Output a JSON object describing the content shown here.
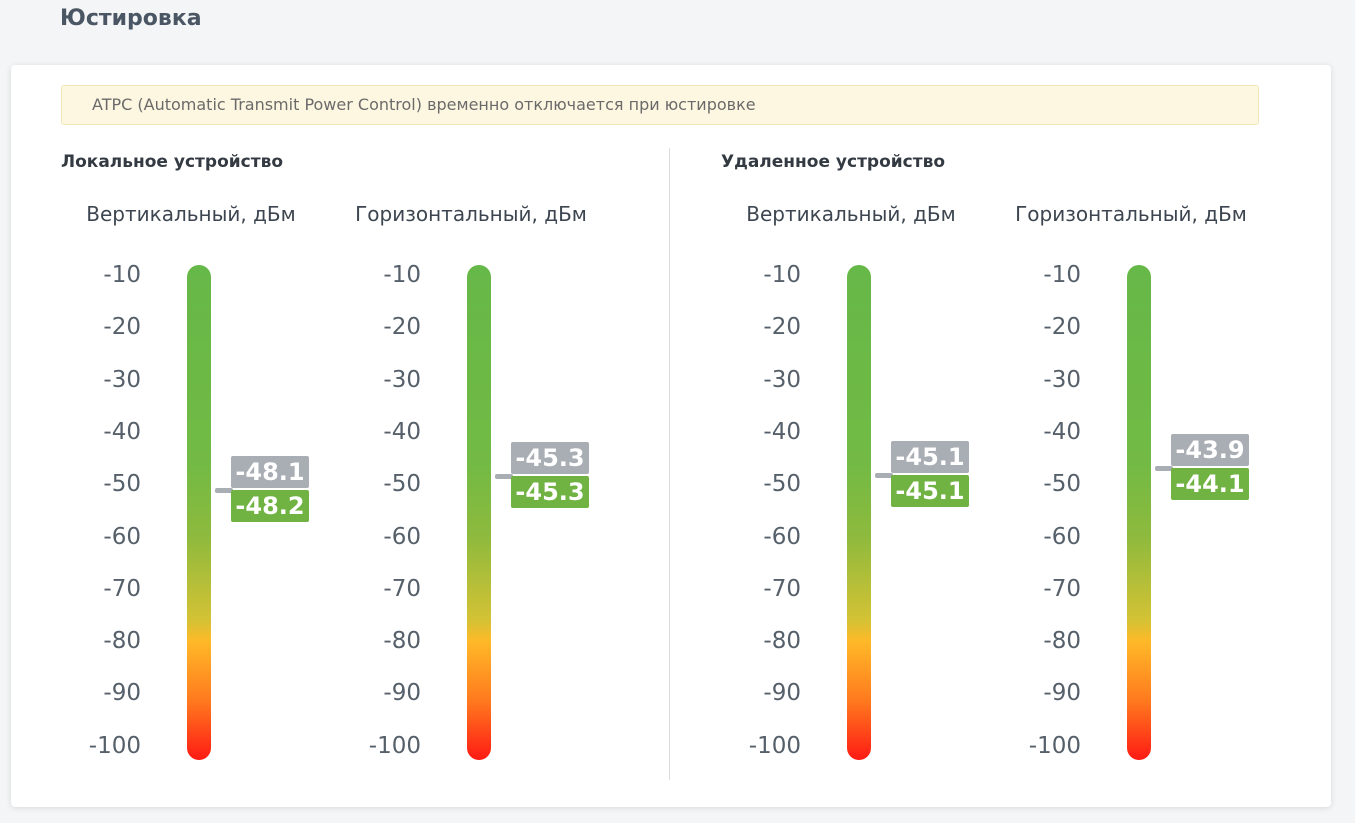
{
  "page": {
    "title": "Юстировка"
  },
  "notice": "ATPC (Automatic Transmit Power Control) временно отключается при юстировке",
  "scale": {
    "ticks": [
      "-10",
      "-20",
      "-30",
      "-40",
      "-50",
      "-60",
      "-70",
      "-80",
      "-90",
      "-100"
    ],
    "min": -100,
    "max": -10
  },
  "colors": {
    "bar_top": "#66b848",
    "bar_middle": "#ffb928",
    "bar_bottom": "#ff1a14",
    "label_grey": "#a9aeb4",
    "label_green": "#71b343"
  },
  "sections": [
    {
      "title": "Локальное устройство",
      "gauges": [
        {
          "title": "Вертикальный, дБм",
          "value1": "-48.1",
          "value2": "-48.2"
        },
        {
          "title": "Горизонтальный, дБм",
          "value1": "-45.3",
          "value2": "-45.3"
        }
      ]
    },
    {
      "title": "Удаленное устройство",
      "gauges": [
        {
          "title": "Вертикальный, дБм",
          "value1": "-45.1",
          "value2": "-45.1"
        },
        {
          "title": "Горизонтальный, дБм",
          "value1": "-43.9",
          "value2": "-44.1"
        }
      ]
    }
  ]
}
